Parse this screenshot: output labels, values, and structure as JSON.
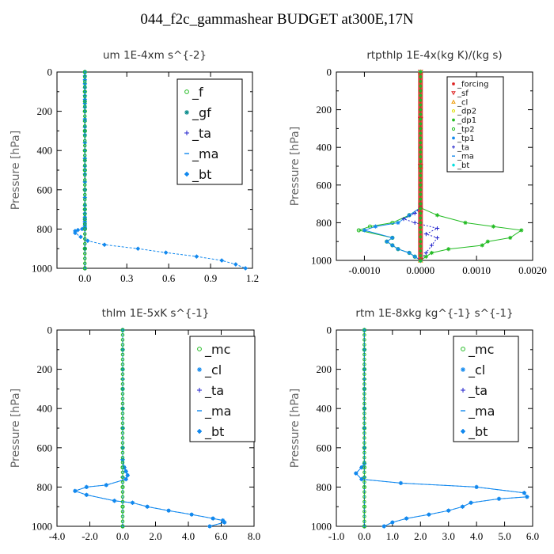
{
  "figure_title": "044_f2c_gammashear  BUDGET at300E,17N",
  "colors": {
    "green": "#22bb22",
    "teal": "#008888",
    "blue": "#2222cc",
    "cyan_blue": "#1188ee",
    "bright_cyan": "#00e0e0",
    "red": "#dd2222",
    "orange": "#ee9900",
    "yellow": "#dddd00"
  },
  "chart_data": [
    {
      "type": "line",
      "title": "um   1E-4xm s^{-2}",
      "ylabel": "Pressure [hPa]",
      "xlim": [
        -0.2,
        1.2
      ],
      "ylim": [
        1000,
        0
      ],
      "xticks": [
        "0.0",
        "0.3",
        "0.6",
        "0.9",
        "1.2"
      ],
      "xtick_values": [
        0,
        0.3,
        0.6,
        0.9,
        1.2
      ],
      "yticks": [
        "0",
        "200",
        "400",
        "600",
        "800",
        "1000"
      ],
      "ytick_values": [
        0,
        200,
        400,
        600,
        800,
        1000
      ],
      "grid": false,
      "legend_position": "top-right",
      "series": [
        {
          "name": "_f",
          "color": "#22bb22",
          "marker": "circle",
          "x": [
            0,
            0,
            0,
            0,
            0,
            0,
            0,
            0,
            0,
            0,
            0
          ],
          "y": [
            0,
            100,
            200,
            300,
            400,
            500,
            600,
            700,
            800,
            900,
            1000
          ]
        },
        {
          "name": "_gf",
          "color": "#008888",
          "marker": "star",
          "x": [
            0,
            0,
            0,
            0,
            0,
            0,
            0
          ],
          "y": [
            0,
            150,
            300,
            450,
            600,
            750,
            900
          ]
        },
        {
          "name": "_ta",
          "color": "#2222cc",
          "marker": "plus",
          "x": [
            0,
            0,
            0,
            0,
            0,
            0
          ],
          "y": [
            0,
            200,
            400,
            600,
            800,
            1000
          ]
        },
        {
          "name": "_ma",
          "color": "#1188ee",
          "marker": "dash",
          "x": [
            0,
            0,
            0,
            0,
            0
          ],
          "y": [
            0,
            250,
            500,
            750,
            1000
          ]
        },
        {
          "name": "_bt",
          "color": "#1188ee",
          "marker": "diamond",
          "x": [
            0,
            0,
            0,
            0,
            0,
            0,
            0,
            0,
            0,
            0,
            0,
            0,
            0,
            0,
            0,
            0,
            0,
            0,
            0,
            0,
            0,
            0,
            0,
            0,
            0,
            0,
            0,
            0,
            0,
            0,
            0,
            0,
            -0.02,
            -0.05,
            -0.07,
            -0.07,
            -0.03,
            0.02,
            0.14,
            0.38,
            0.58,
            0.8,
            0.98,
            1.08,
            1.15
          ],
          "y": [
            0,
            20,
            40,
            60,
            80,
            100,
            120,
            140,
            160,
            180,
            200,
            240,
            280,
            320,
            360,
            400,
            440,
            480,
            520,
            560,
            600,
            640,
            680,
            700,
            720,
            740,
            750,
            760,
            770,
            780,
            790,
            795,
            800,
            805,
            810,
            820,
            840,
            860,
            880,
            900,
            920,
            940,
            960,
            980,
            1000
          ]
        }
      ]
    },
    {
      "type": "line",
      "title": "rtpthlp   1E-4x(kg K)/(kg s)",
      "ylabel": "Pressure [hPa]",
      "xlim": [
        -0.0015,
        0.002
      ],
      "ylim": [
        1000,
        0
      ],
      "xticks": [
        "-0.0010",
        "0.0000",
        "0.0010",
        "0.0020"
      ],
      "xtick_values": [
        -0.001,
        0,
        0.001,
        0.002
      ],
      "yticks": [
        "0",
        "200",
        "400",
        "600",
        "800",
        "1000"
      ],
      "ytick_values": [
        0,
        200,
        400,
        600,
        800,
        1000
      ],
      "grid": false,
      "legend_position": "top-right",
      "series": [
        {
          "name": "_forcing",
          "color": "#dd2222",
          "marker": "star",
          "x": [
            0,
            0,
            0,
            0,
            0,
            0,
            0,
            0,
            0,
            0,
            0
          ],
          "y": [
            0,
            100,
            200,
            300,
            400,
            500,
            600,
            700,
            800,
            900,
            1000
          ]
        },
        {
          "name": "_sf",
          "color": "#dd2222",
          "marker": "triangle-down",
          "x": [
            0,
            0,
            0,
            0,
            0
          ],
          "y": [
            0,
            250,
            500,
            750,
            1000
          ]
        },
        {
          "name": "_cl",
          "color": "#ee9900",
          "marker": "triangle-up",
          "x": [
            0,
            0,
            0
          ],
          "y": [
            0,
            500,
            1000
          ]
        },
        {
          "name": "_dp2",
          "color": "#dddd00",
          "marker": "circle",
          "x": [
            0,
            0,
            0
          ],
          "y": [
            0,
            500,
            1000
          ]
        },
        {
          "name": "_dp1",
          "color": "#22bb22",
          "marker": "star",
          "x": [
            0,
            0,
            0.0003,
            0.0008,
            0.0013,
            0.0018,
            0.0016,
            0.0012,
            0.0011,
            0.0005,
            0.0002,
            0.0001,
            0
          ],
          "y": [
            700,
            720,
            760,
            800,
            820,
            840,
            880,
            900,
            920,
            940,
            960,
            980,
            1000
          ]
        },
        {
          "name": "_tp2",
          "color": "#22bb22",
          "marker": "circle",
          "x": [
            0,
            0,
            -0.0002,
            -0.0005,
            -0.0009,
            -0.0011,
            -0.0005,
            -0.0006,
            -0.0005,
            -0.0004,
            -0.0002,
            -0.0001,
            0
          ],
          "y": [
            700,
            720,
            760,
            800,
            820,
            840,
            880,
            900,
            920,
            940,
            960,
            980,
            1000
          ]
        },
        {
          "name": "_tp1",
          "color": "#1188ee",
          "marker": "star",
          "x": [
            0,
            0,
            -0.0002,
            -0.0004,
            -0.0008,
            -0.001,
            -0.0005,
            -0.0006,
            -0.0005,
            -0.0004,
            -0.0002,
            -0.0001,
            0
          ],
          "y": [
            700,
            720,
            760,
            800,
            820,
            840,
            880,
            900,
            920,
            940,
            960,
            980,
            1000
          ]
        },
        {
          "name": "_ta",
          "color": "#2222cc",
          "marker": "plus",
          "x": [
            0,
            -0.0001,
            -0.0003,
            -0.0001,
            0.0003,
            0.0001,
            0.0003,
            0.0002,
            0.0001,
            0
          ],
          "y": [
            720,
            750,
            780,
            800,
            830,
            860,
            880,
            920,
            960,
            1000
          ]
        },
        {
          "name": "_ma",
          "color": "#1188ee",
          "marker": "dash",
          "x": [
            0,
            0,
            0
          ],
          "y": [
            0,
            500,
            1000
          ]
        },
        {
          "name": "_bt",
          "color": "#00e0e0",
          "marker": "diamond",
          "x": [
            0,
            0,
            0
          ],
          "y": [
            0,
            500,
            1000
          ]
        }
      ]
    },
    {
      "type": "line",
      "title": "thlm   1E-5xK s^{-1}",
      "ylabel": "Pressure [hPa]",
      "xlim": [
        -4,
        8
      ],
      "ylim": [
        1000,
        0
      ],
      "xticks": [
        "-4.0",
        "-2.0",
        "0.0",
        "2.0",
        "4.0",
        "6.0",
        "8.0"
      ],
      "xtick_values": [
        -4,
        -2,
        0,
        2,
        4,
        6,
        8
      ],
      "yticks": [
        "0",
        "200",
        "400",
        "600",
        "800",
        "1000"
      ],
      "ytick_values": [
        0,
        200,
        400,
        600,
        800,
        1000
      ],
      "grid": false,
      "legend_position": "top-right",
      "series": [
        {
          "name": "_mc",
          "color": "#22bb22",
          "marker": "circle",
          "x": [
            0,
            0,
            0,
            0,
            0,
            0,
            0,
            0,
            0,
            0,
            0
          ],
          "y": [
            0,
            100,
            200,
            300,
            400,
            500,
            600,
            700,
            800,
            900,
            1000
          ]
        },
        {
          "name": "_cl",
          "color": "#1188ee",
          "marker": "star",
          "x": [
            0,
            0,
            0,
            0,
            0,
            0,
            0,
            0,
            0.1,
            0.2,
            0.3,
            0.2,
            -1.0,
            -2.2,
            -2.9,
            -2.2,
            -0.5,
            0.6,
            1.5,
            2.8,
            4.2,
            5.5,
            6.1,
            6.2,
            5.3
          ],
          "y": [
            0,
            100,
            200,
            300,
            400,
            500,
            600,
            660,
            700,
            720,
            740,
            760,
            790,
            800,
            820,
            840,
            870,
            880,
            900,
            920,
            940,
            960,
            970,
            980,
            1000
          ]
        },
        {
          "name": "_ta",
          "color": "#2222cc",
          "marker": "plus",
          "x": [
            0,
            0,
            0,
            0,
            0
          ],
          "y": [
            0,
            250,
            500,
            750,
            1000
          ]
        },
        {
          "name": "_ma",
          "color": "#1188ee",
          "marker": "dash",
          "x": [
            0,
            0,
            0,
            0,
            0
          ],
          "y": [
            0,
            250,
            500,
            750,
            1000
          ]
        },
        {
          "name": "_bt",
          "color": "#1188ee",
          "marker": "diamond",
          "x": [
            0,
            0,
            0,
            0,
            0,
            0,
            0,
            0,
            0.1,
            0.2,
            0.3,
            0.2,
            -1.0,
            -2.2,
            -2.9,
            -2.2,
            -0.5,
            0.6,
            1.5,
            2.8,
            4.2,
            5.5,
            6.1,
            6.2,
            5.3
          ],
          "y": [
            0,
            100,
            200,
            300,
            400,
            500,
            600,
            660,
            700,
            720,
            740,
            760,
            790,
            800,
            820,
            840,
            870,
            880,
            900,
            920,
            940,
            960,
            970,
            980,
            1000
          ]
        }
      ]
    },
    {
      "type": "line",
      "title": "rtm   1E-8xkg kg^{-1} s^{-1}",
      "ylabel": "Pressure [hPa]",
      "xlim": [
        -1,
        6
      ],
      "ylim": [
        1000,
        0
      ],
      "xticks": [
        "-1.0",
        "0.0",
        "1.0",
        "2.0",
        "3.0",
        "4.0",
        "5.0",
        "6.0"
      ],
      "xtick_values": [
        -1,
        0,
        1,
        2,
        3,
        4,
        5,
        6
      ],
      "yticks": [
        "0",
        "200",
        "400",
        "600",
        "800",
        "1000"
      ],
      "ytick_values": [
        0,
        200,
        400,
        600,
        800,
        1000
      ],
      "grid": false,
      "legend_position": "top-right",
      "series": [
        {
          "name": "_mc",
          "color": "#22bb22",
          "marker": "circle",
          "x": [
            0,
            0,
            0,
            0,
            0,
            0,
            0,
            0,
            0,
            0,
            0
          ],
          "y": [
            0,
            100,
            200,
            300,
            400,
            500,
            600,
            700,
            800,
            900,
            1000
          ]
        },
        {
          "name": "_cl",
          "color": "#1188ee",
          "marker": "star",
          "x": [
            0,
            0,
            0,
            0,
            0,
            0,
            0,
            0,
            -0.1,
            -0.3,
            -0.1,
            1.3,
            4.0,
            5.7,
            5.8,
            4.8,
            3.8,
            3.5,
            3.0,
            2.3,
            1.5,
            1.0,
            0.7
          ],
          "y": [
            0,
            100,
            200,
            300,
            400,
            500,
            600,
            680,
            700,
            730,
            760,
            780,
            800,
            830,
            850,
            860,
            880,
            900,
            920,
            940,
            960,
            980,
            1000
          ]
        },
        {
          "name": "_ta",
          "color": "#2222cc",
          "marker": "plus",
          "x": [
            0,
            0,
            0,
            0,
            0
          ],
          "y": [
            0,
            250,
            500,
            750,
            1000
          ]
        },
        {
          "name": "_ma",
          "color": "#1188ee",
          "marker": "dash",
          "x": [
            0,
            0,
            0,
            0,
            0
          ],
          "y": [
            0,
            250,
            500,
            750,
            1000
          ]
        },
        {
          "name": "_bt",
          "color": "#1188ee",
          "marker": "diamond",
          "x": [
            0,
            0,
            0,
            0,
            0,
            0,
            0,
            0,
            -0.1,
            -0.3,
            -0.1,
            1.3,
            4.0,
            5.7,
            5.8,
            4.8,
            3.8,
            3.5,
            3.0,
            2.3,
            1.5,
            1.0,
            0.7
          ],
          "y": [
            0,
            100,
            200,
            300,
            400,
            500,
            600,
            680,
            700,
            730,
            760,
            780,
            800,
            830,
            850,
            860,
            880,
            900,
            920,
            940,
            960,
            980,
            1000
          ]
        }
      ]
    }
  ]
}
